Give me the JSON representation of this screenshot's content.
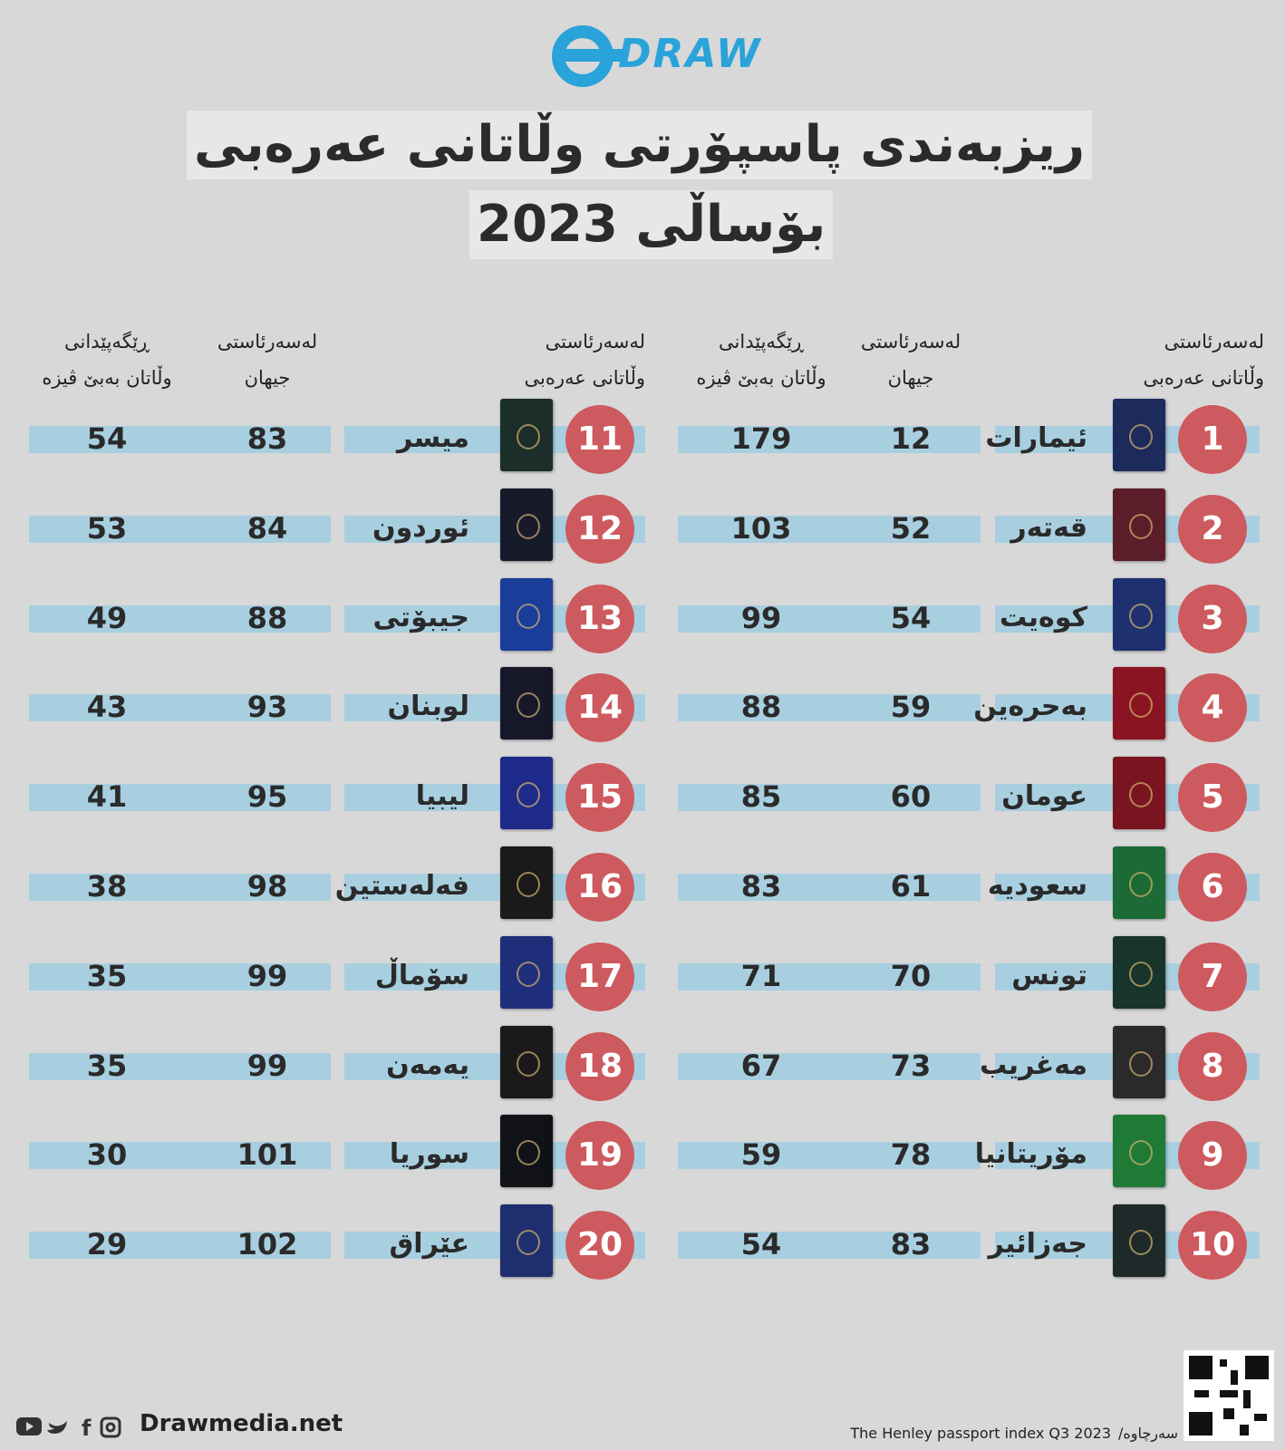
{
  "header": {
    "logo": "DRAW",
    "title": [
      "ریزبەندی پاسپۆرتی وڵاتانی عەرەبی",
      "بۆساڵی 2023"
    ]
  },
  "columns": {
    "arab_rank": [
      "لەسەرئاستی",
      "وڵاتانی عەرەبی"
    ],
    "world_rank": [
      "لەسەرئاستی",
      "جیهان"
    ],
    "visa_free": [
      "ڕێگەپێدانی",
      "وڵاتان بەبێ ڤیزە"
    ]
  },
  "rows": [
    {
      "rank": "1",
      "name": "ئیمارات",
      "world": "12",
      "visa_free": "179"
    },
    {
      "rank": "2",
      "name": "قەتەر",
      "world": "52",
      "visa_free": "103"
    },
    {
      "rank": "3",
      "name": "کوەیت",
      "world": "54",
      "visa_free": "99"
    },
    {
      "rank": "4",
      "name": "بەحرەین",
      "world": "59",
      "visa_free": "88"
    },
    {
      "rank": "5",
      "name": "عومان",
      "world": "60",
      "visa_free": "85"
    },
    {
      "rank": "6",
      "name": "سعودیە",
      "world": "61",
      "visa_free": "83"
    },
    {
      "rank": "7",
      "name": "تونس",
      "world": "70",
      "visa_free": "71"
    },
    {
      "rank": "8",
      "name": "مەغریب",
      "world": "73",
      "visa_free": "67"
    },
    {
      "rank": "9",
      "name": "مۆریتانیا",
      "world": "78",
      "visa_free": "59"
    },
    {
      "rank": "10",
      "name": "جەزائیر",
      "world": "83",
      "visa_free": "54"
    },
    {
      "rank": "11",
      "name": "میسر",
      "world": "83",
      "visa_free": "54"
    },
    {
      "rank": "12",
      "name": "ئوردون",
      "world": "84",
      "visa_free": "53"
    },
    {
      "rank": "13",
      "name": "جیبۆتی",
      "world": "88",
      "visa_free": "49"
    },
    {
      "rank": "14",
      "name": "لوبنان",
      "world": "93",
      "visa_free": "43"
    },
    {
      "rank": "15",
      "name": "لیبیا",
      "world": "95",
      "visa_free": "41"
    },
    {
      "rank": "16",
      "name": "فەلەستین",
      "world": "98",
      "visa_free": "38"
    },
    {
      "rank": "17",
      "name": "سۆماڵ",
      "world": "99",
      "visa_free": "35"
    },
    {
      "rank": "18",
      "name": "یەمەن",
      "world": "99",
      "visa_free": "35"
    },
    {
      "rank": "19",
      "name": "سوریا",
      "world": "101",
      "visa_free": "30"
    },
    {
      "rank": "20",
      "name": "عێراق",
      "world": "102",
      "visa_free": "29"
    }
  ],
  "footer": {
    "website": "Drawmedia.net",
    "source": "The Henley passport index Q3 2023",
    "source_label": "سەرچاوە/"
  }
}
